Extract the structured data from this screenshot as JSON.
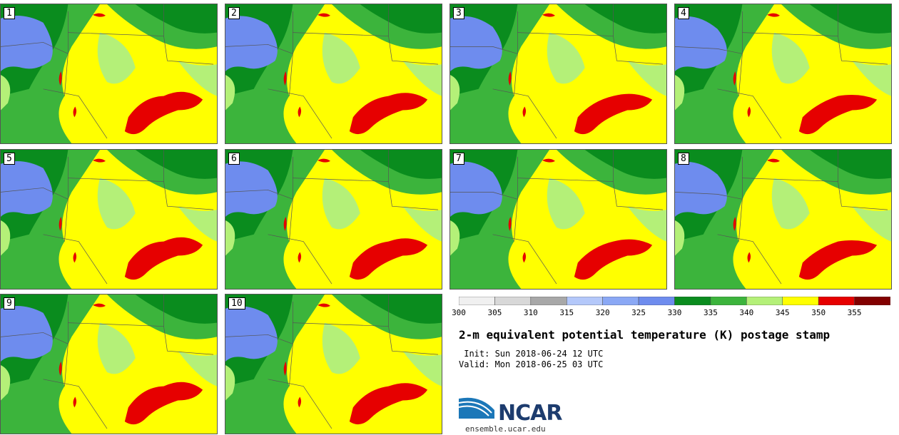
{
  "title": "2-m equivalent potential temperature (K) postage stamp",
  "init_line": " Init: Sun 2018-06-24 12 UTC",
  "valid_line": "Valid: Mon 2018-06-25 03 UTC",
  "logo_text": "NCAR",
  "url": "ensemble.ucar.edu",
  "members": [
    "1",
    "2",
    "3",
    "4",
    "5",
    "6",
    "7",
    "8",
    "9",
    "10"
  ],
  "colorbar": {
    "ticks": [
      "300",
      "305",
      "310",
      "315",
      "320",
      "325",
      "330",
      "335",
      "340",
      "345",
      "350",
      "355"
    ],
    "bins": [
      {
        "from": 300,
        "to": 305,
        "color": "#f0f0f0"
      },
      {
        "from": 305,
        "to": 310,
        "color": "#d8d8d8"
      },
      {
        "from": 310,
        "to": 315,
        "color": "#a8a8a8"
      },
      {
        "from": 315,
        "to": 320,
        "color": "#b4c8fa"
      },
      {
        "from": 320,
        "to": 325,
        "color": "#8aa8f5"
      },
      {
        "from": 325,
        "to": 330,
        "color": "#6e8cee"
      },
      {
        "from": 330,
        "to": 335,
        "color": "#0a8c1e"
      },
      {
        "from": 335,
        "to": 340,
        "color": "#3cb43c"
      },
      {
        "from": 340,
        "to": 345,
        "color": "#b4f078"
      },
      {
        "from": 345,
        "to": 350,
        "color": "#ffff00"
      },
      {
        "from": 350,
        "to": 355,
        "color": "#e60000"
      },
      {
        "from": 355,
        "to": 360,
        "color": "#820000"
      }
    ]
  }
}
